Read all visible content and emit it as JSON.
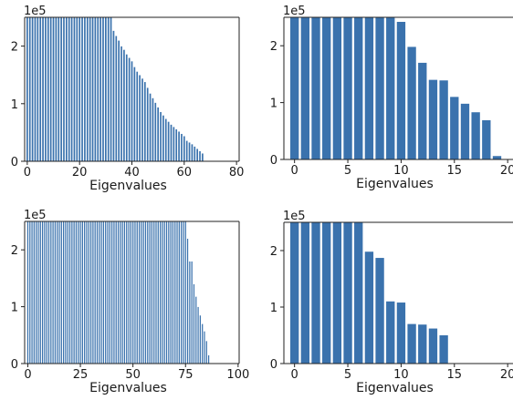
{
  "figure": {
    "bar_color": "#3a72ad",
    "edge_color": "#ffffff"
  },
  "chart_data": [
    {
      "type": "bar",
      "xlabel": "Eigenvalues",
      "y_offset_label": "1e5",
      "xlim": [
        -1,
        81
      ],
      "ylim": [
        0,
        2.5
      ],
      "xticks": [
        0,
        20,
        40,
        60,
        80
      ],
      "yticks": [
        0,
        1,
        2
      ],
      "values": [
        2.5,
        2.5,
        2.5,
        2.5,
        2.5,
        2.5,
        2.5,
        2.5,
        2.5,
        2.5,
        2.5,
        2.5,
        2.5,
        2.5,
        2.5,
        2.5,
        2.5,
        2.5,
        2.5,
        2.5,
        2.5,
        2.5,
        2.5,
        2.5,
        2.5,
        2.5,
        2.5,
        2.5,
        2.5,
        2.5,
        2.5,
        2.5,
        2.5,
        2.27,
        2.18,
        2.1,
        2.0,
        1.94,
        1.86,
        1.8,
        1.74,
        1.64,
        1.56,
        1.5,
        1.44,
        1.38,
        1.28,
        1.18,
        1.1,
        1.02,
        0.94,
        0.86,
        0.8,
        0.74,
        0.69,
        0.64,
        0.6,
        0.56,
        0.52,
        0.48,
        0.44,
        0.36,
        0.33,
        0.3,
        0.26,
        0.22,
        0.18,
        0.14
      ]
    },
    {
      "type": "bar",
      "xlabel": "Eigenvalues",
      "y_offset_label": "1e5",
      "xlim": [
        -1,
        20.5
      ],
      "ylim": [
        0,
        2.5
      ],
      "xticks": [
        0,
        5,
        10,
        15,
        20
      ],
      "yticks": [
        0,
        1,
        2
      ],
      "values": [
        2.5,
        2.5,
        2.5,
        2.5,
        2.5,
        2.5,
        2.5,
        2.5,
        2.5,
        2.5,
        2.42,
        1.98,
        1.7,
        1.4,
        1.39,
        1.1,
        0.98,
        0.83,
        0.69,
        0.06
      ]
    },
    {
      "type": "bar",
      "xlabel": "Eigenvalues",
      "y_offset_label": "1e5",
      "xlim": [
        -1.5,
        100.5
      ],
      "ylim": [
        0,
        2.5
      ],
      "xticks": [
        0,
        25,
        50,
        75,
        100
      ],
      "yticks": [
        0,
        1,
        2
      ],
      "values": [
        2.5,
        2.5,
        2.5,
        2.5,
        2.5,
        2.5,
        2.5,
        2.5,
        2.5,
        2.5,
        2.5,
        2.5,
        2.5,
        2.5,
        2.5,
        2.5,
        2.5,
        2.5,
        2.5,
        2.5,
        2.5,
        2.5,
        2.5,
        2.5,
        2.5,
        2.5,
        2.5,
        2.5,
        2.5,
        2.5,
        2.5,
        2.5,
        2.5,
        2.5,
        2.5,
        2.5,
        2.5,
        2.5,
        2.5,
        2.5,
        2.5,
        2.5,
        2.5,
        2.5,
        2.5,
        2.5,
        2.5,
        2.5,
        2.5,
        2.5,
        2.5,
        2.5,
        2.5,
        2.5,
        2.5,
        2.5,
        2.5,
        2.5,
        2.5,
        2.5,
        2.5,
        2.5,
        2.5,
        2.5,
        2.5,
        2.5,
        2.5,
        2.5,
        2.5,
        2.5,
        2.5,
        2.5,
        2.5,
        2.5,
        2.5,
        2.5,
        2.2,
        1.8,
        1.8,
        1.4,
        1.18,
        1.0,
        0.85,
        0.7,
        0.57,
        0.4,
        0.15
      ]
    },
    {
      "type": "bar",
      "xlabel": "Eigenvalues",
      "y_offset_label": "1e5",
      "xlim": [
        -1,
        20.5
      ],
      "ylim": [
        0,
        2.5
      ],
      "xticks": [
        0,
        5,
        10,
        15,
        20
      ],
      "yticks": [
        0,
        1,
        2
      ],
      "values": [
        2.5,
        2.5,
        2.5,
        2.5,
        2.5,
        2.5,
        2.5,
        1.98,
        1.87,
        1.1,
        1.08,
        0.7,
        0.69,
        0.62,
        0.5
      ]
    }
  ]
}
